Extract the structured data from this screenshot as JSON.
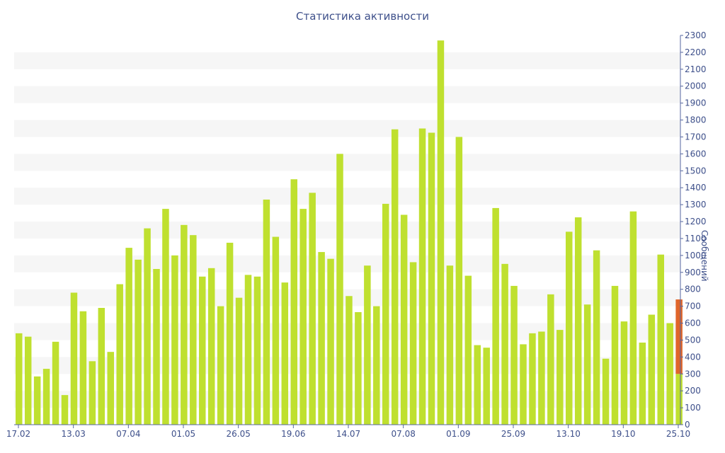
{
  "chart_data": {
    "type": "bar",
    "title": "Статистика активности",
    "ylabel": "Сообщений",
    "xlabel": "",
    "ylim": [
      0,
      2300
    ],
    "y_ticks": [
      0,
      100,
      200,
      300,
      400,
      500,
      600,
      700,
      800,
      900,
      1000,
      1100,
      1200,
      1300,
      1400,
      1500,
      1600,
      1700,
      1800,
      1900,
      2000,
      2100,
      2200,
      2300
    ],
    "x_tick_labels": [
      "17.02",
      "13.03",
      "07.04",
      "01.05",
      "26.05",
      "19.06",
      "14.07",
      "07.08",
      "01.09",
      "25.09",
      "13.10",
      "19.10",
      "25.10"
    ],
    "grid": "horizontal alternating bands",
    "bar_color": "#bfe02f",
    "highlight_color": "#e0652a",
    "values": [
      540,
      520,
      285,
      330,
      490,
      175,
      780,
      670,
      375,
      690,
      430,
      830,
      1045,
      975,
      1160,
      920,
      1275,
      1000,
      1180,
      1120,
      875,
      925,
      700,
      1075,
      750,
      885,
      875,
      1330,
      1110,
      840,
      1450,
      1275,
      1370,
      1020,
      980,
      1600,
      760,
      665,
      940,
      700,
      1305,
      1745,
      1240,
      960,
      1750,
      1725,
      2270,
      940,
      1700,
      880,
      470,
      455,
      1280,
      950,
      820,
      475,
      540,
      550,
      770,
      560,
      1140,
      1225,
      710,
      1030,
      390,
      820,
      610,
      1260,
      485,
      650,
      1005,
      600
    ],
    "highlight_bar": {
      "total": 740,
      "base": 300
    }
  }
}
